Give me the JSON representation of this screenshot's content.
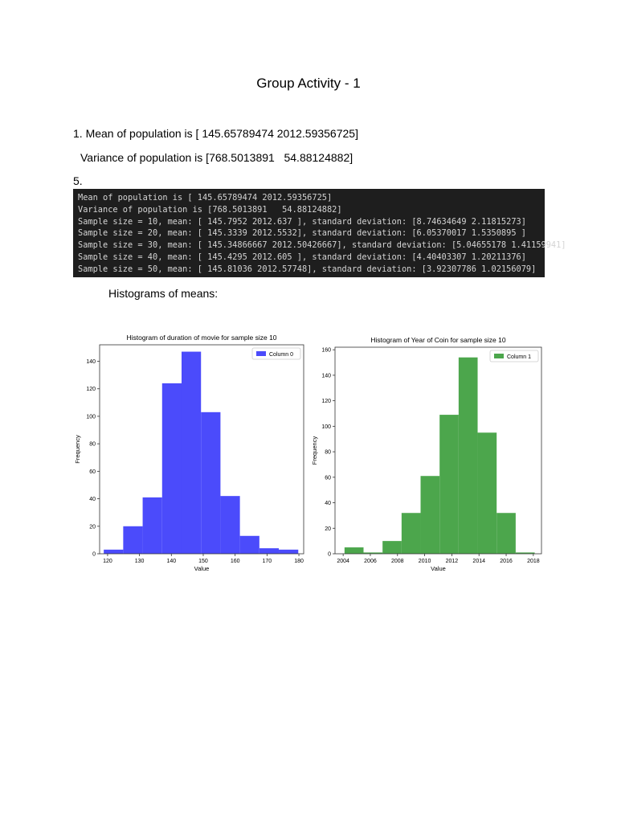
{
  "document": {
    "title": "Group Activity - 1",
    "line1": "1. Mean of population is [ 145.65789474 2012.59356725]",
    "line2": "Variance of population is [768.5013891   54.88124882]",
    "line3": "5.",
    "console_lines": [
      "Mean of population is [ 145.65789474 2012.59356725]",
      "Variance of population is [768.5013891   54.88124882]",
      "Sample size = 10, mean: [ 145.7952 2012.637 ], standard deviation: [8.74634649 2.11815273]",
      "Sample size = 20, mean: [ 145.3339 2012.5532], standard deviation: [6.05370017 1.5350895 ]",
      "Sample size = 30, mean: [ 145.34866667 2012.50426667], standard deviation: [5.04655178 1.41159941]",
      "Sample size = 40, mean: [ 145.4295 2012.605 ], standard deviation: [4.40403307 1.20211376]",
      "Sample size = 50, mean: [ 145.81036 2012.57748], standard deviation: [3.92307786 1.02156079]"
    ],
    "histograms_label": "Histograms of means:"
  },
  "chart_data": [
    {
      "type": "bar",
      "title": "Histogram of duration of movie for sample size 10",
      "xlabel": "Value",
      "ylabel": "Frequency",
      "xlim": [
        117.5,
        181.5
      ],
      "ylim": [
        0,
        152
      ],
      "xticks": [
        120,
        130,
        140,
        150,
        160,
        170,
        180
      ],
      "yticks": [
        0,
        20,
        40,
        60,
        80,
        100,
        120,
        140
      ],
      "bin_edges": [
        118.8,
        124.9,
        131.0,
        137.1,
        143.2,
        149.3,
        155.4,
        161.5,
        167.6,
        173.7,
        179.8
      ],
      "values": [
        3,
        20,
        41,
        124,
        147,
        103,
        42,
        13,
        4,
        3
      ],
      "color": "#4b4bfb",
      "series": [
        {
          "name": "Column 0",
          "values": [
            3,
            20,
            41,
            124,
            147,
            103,
            42,
            13,
            4,
            3
          ]
        }
      ],
      "legend": "top-right",
      "grid": false
    },
    {
      "type": "bar",
      "title": "Histogram of Year of Coin for sample size 10",
      "xlabel": "Value",
      "ylabel": "Frequency",
      "xlim": [
        2003.4,
        2018.6
      ],
      "ylim": [
        0,
        162
      ],
      "xticks": [
        2004,
        2006,
        2008,
        2010,
        2012,
        2014,
        2016,
        2018
      ],
      "yticks": [
        0,
        20,
        40,
        60,
        80,
        100,
        120,
        140,
        160
      ],
      "bin_edges": [
        2004.1,
        2005.5,
        2006.9,
        2008.3,
        2009.7,
        2011.1,
        2012.5,
        2013.9,
        2015.3,
        2016.7,
        2018.1
      ],
      "values": [
        5,
        1,
        10,
        32,
        61,
        109,
        154,
        95,
        32,
        1
      ],
      "color": "#4ca64c",
      "series": [
        {
          "name": "Column 1",
          "values": [
            5,
            1,
            10,
            32,
            61,
            109,
            154,
            95,
            32,
            1
          ]
        }
      ],
      "legend": "top-right",
      "grid": false
    }
  ]
}
